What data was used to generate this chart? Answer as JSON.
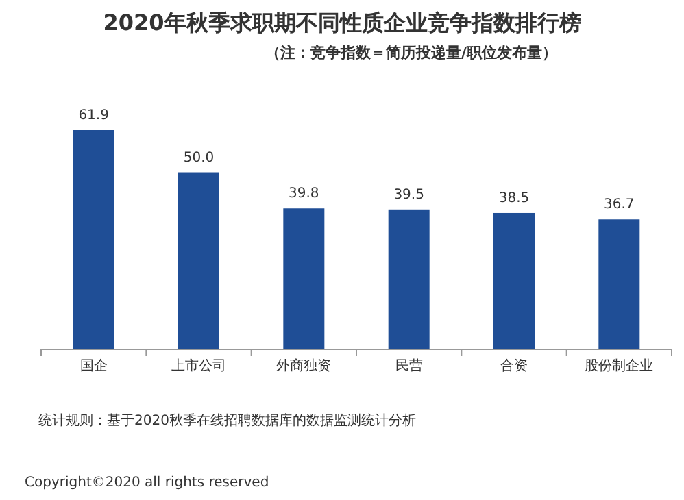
{
  "chart_data": {
    "type": "bar",
    "title": "2020年秋季求职期不同性质企业竞争指数排行榜",
    "subtitle": "（注：竞争指数＝简历投递量/职位发布量）",
    "categories": [
      "国企",
      "上市公司",
      "外商独资",
      "民营",
      "合资",
      "股份制企业"
    ],
    "values": [
      61.9,
      50.0,
      39.8,
      39.5,
      38.5,
      36.7
    ],
    "value_labels": [
      "61.9",
      "50.0",
      "39.8",
      "39.5",
      "38.5",
      "36.7"
    ],
    "color": "#1f4e96",
    "annotations": [
      "统计规则：基于2020秋季在线招聘数据库的数据监测统计分析",
      "Copyright©2020 all rights reserved"
    ]
  }
}
